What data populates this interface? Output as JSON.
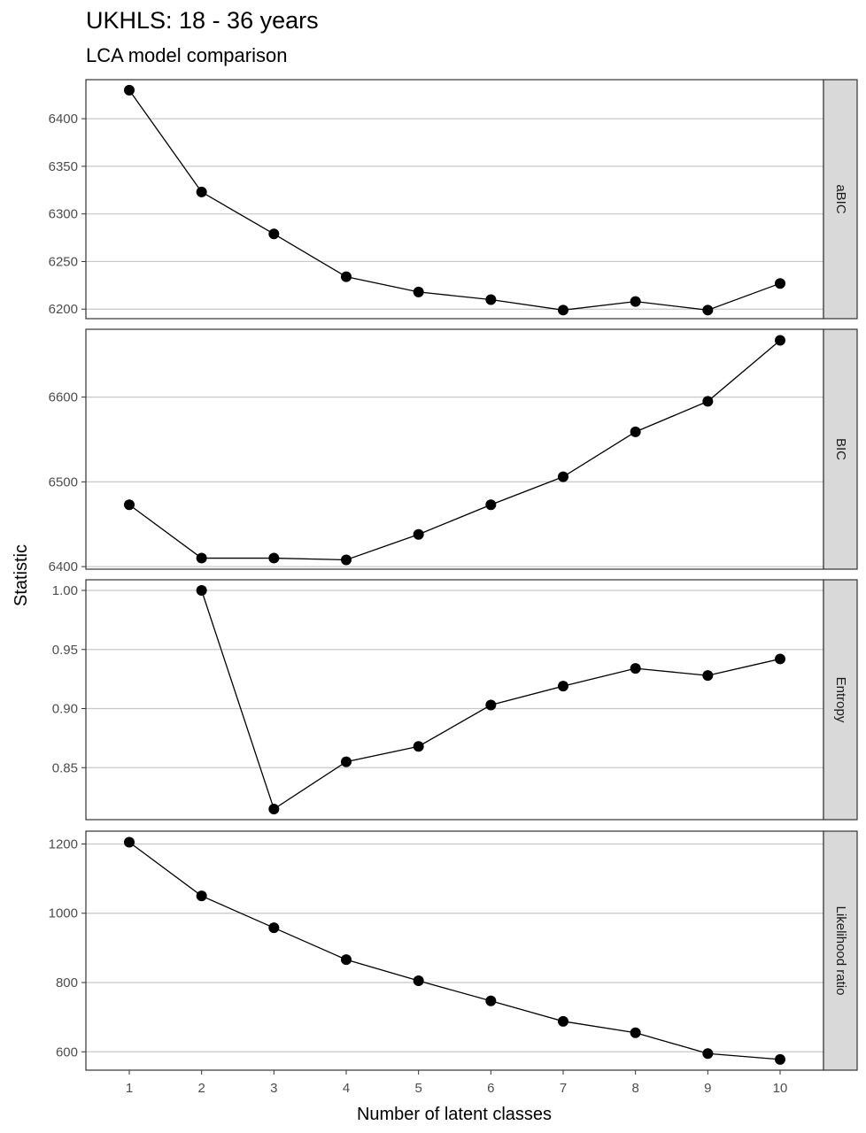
{
  "title": "UKHLS: 18 - 36 years",
  "subtitle": "LCA model comparison",
  "chart_data": {
    "type": "line",
    "title": "UKHLS: 18 - 36 years",
    "subtitle": "LCA model comparison",
    "xlabel": "Number of latent classes",
    "ylabel": "Statistic",
    "x": [
      1,
      2,
      3,
      4,
      5,
      6,
      7,
      8,
      9,
      10
    ],
    "xlim": [
      0.4,
      10.6
    ],
    "grid": true,
    "markers": "filled-circle",
    "line_color": "#000000",
    "strip_fill": "#d9d9d9",
    "facets": [
      {
        "name": "aBIC",
        "x": [
          1,
          2,
          3,
          4,
          5,
          6,
          7,
          8,
          9,
          10
        ],
        "values": [
          6430,
          6323,
          6279,
          6234,
          6218,
          6210,
          6199,
          6208,
          6199,
          6227
        ],
        "ylim": [
          6190,
          6441
        ],
        "yticks": [
          6200,
          6250,
          6300,
          6350,
          6400
        ],
        "yticklabels": [
          "6200",
          "6250",
          "6300",
          "6350",
          "6400"
        ]
      },
      {
        "name": "BIC",
        "x": [
          1,
          2,
          3,
          4,
          5,
          6,
          7,
          8,
          9,
          10
        ],
        "values": [
          6473,
          6410,
          6410,
          6408,
          6438,
          6473,
          6506,
          6559,
          6595,
          6667
        ],
        "ylim": [
          6397,
          6680
        ],
        "yticks": [
          6400,
          6500,
          6600
        ],
        "yticklabels": [
          "6400",
          "6500",
          "6600"
        ]
      },
      {
        "name": "Entropy",
        "x": [
          2,
          3,
          4,
          5,
          6,
          7,
          8,
          9,
          10
        ],
        "values": [
          1.0,
          0.815,
          0.855,
          0.868,
          0.903,
          0.919,
          0.934,
          0.928,
          0.942
        ],
        "ylim": [
          0.806,
          1.009
        ],
        "yticks": [
          0.85,
          0.9,
          0.95,
          1.0
        ],
        "yticklabels": [
          "0.85",
          "0.90",
          "0.95",
          "1.00"
        ]
      },
      {
        "name": "Likelihood ratio",
        "x": [
          1,
          2,
          3,
          4,
          5,
          6,
          7,
          8,
          9,
          10
        ],
        "values": [
          1205,
          1050,
          958,
          866,
          805,
          747,
          688,
          655,
          595,
          578
        ],
        "ylim": [
          547,
          1237
        ],
        "yticks": [
          600,
          800,
          1000,
          1200
        ],
        "yticklabels": [
          "600",
          "800",
          "1000",
          "1200"
        ]
      }
    ]
  }
}
